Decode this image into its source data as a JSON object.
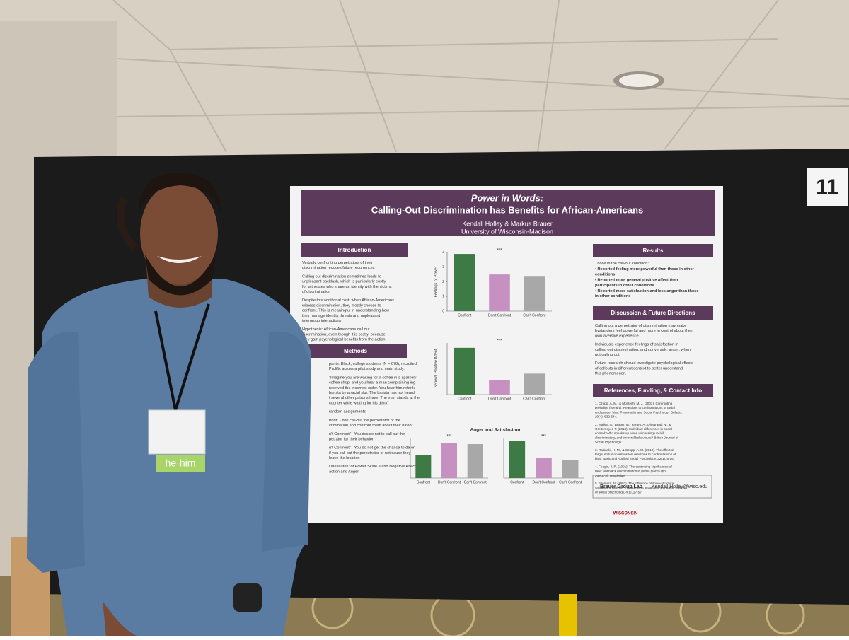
{
  "poster": {
    "number": "11",
    "title": "Power in Words:",
    "subtitle": "Calling-Out Discrimination has Benefits for African-Americans",
    "authors": "Kendall Holley & Markus Brauer",
    "affiliation": "University of Wisconsin-Madison",
    "sections": [
      {
        "heading": "Introduction",
        "paragraphs": [
          "Verbally confronting perpetrators of their discrimination reduces future recurrences",
          "Calling out discrimination sometimes leads to unpleasant backlash, which is particularly costly for witnesses who share an identity with the victims of discrimination",
          "Despite this additional cost, when African-Americans witness discrimination, they mostly choose to confront. This is meaningful in understanding how they manage identity threats and unpleasant intergroup interactions",
          "Hypothesis: African-Americans call out discrimination, even though it is costly, because they gain psychological benefits from the action."
        ]
      },
      {
        "heading": "Methods",
        "paragraphs": [
          "pants: Black, college students (N = 678), recruited Prolific across a pilot study and main study.",
          "\"Imagine you are waiting for a coffee in a sparsely coffee shop, and you hear a man complaining ing received the incorrect order. You hear him refer k barista by a racial slur. The barista has not heard t several other patrons have. The man stands at the counter while waiting for his drink\"",
          "random assignment):",
          "front\" - You call-out the perpetrator of the crimination and confront them about their havior",
          "n't Confront\" - You decide not to call out the petrator for their behavior",
          "n't Confront\" - You do not get the chance to de on if you call out the perpetrator or not cause they leave the location",
          "l Measures: of Power Scale e and Negative Affect action and Anger"
        ]
      },
      {
        "heading": "Results",
        "paragraphs": [
          "Those in the call-out condition:",
          "• Reported feeling more powerful than those in other conditions",
          "• Reported more general positive affect than participants in other conditions",
          "• Reported more satisfaction and less anger than those in other conditions"
        ]
      },
      {
        "heading": "Discussion & Future Directions",
        "paragraphs": [
          "Calling out a perpetrator of discrimination may make bystanders feel powerful and more in control about their own aversive experience.",
          "Individuals experience feelings of satisfaction in calling out discrimination, and conversely, anger, when not calling out.",
          "Future research should investigate psychological effects of callouts in different context to better understand this phenomenon."
        ]
      },
      {
        "heading": "References, Funding, & Contact Info",
        "paragraphs": [
          "1. Czopp, A. M., & Monteith, M. J. (2003). Confronting prejudice (literally): Reactions to confrontations of racial and gender bias. Personality and Social Psychology Bulletin, 29(4), 532-544.",
          "2. Mallett, A., Brauer, M., Faroro, A., Dhaurand, N., & Greitemeyer, T. (2018). Individual differences in social control: Who speaks up when witnessing uncivil, discriminatory, and immoral behaviours? British Journal of Social Psychology.",
          "3. Rasinski, H. M., & Czopp, A. M. (2010). The effect of target status on witnesses' reactions to confrontations of bias. Basic and Applied Social Psychology, 32(1), 8-16.",
          "4. Feagin, J. R. (1991). The continuing significance of race: Antiblack discrimination in public places (pp. 269-275). Routledge.",
          "5. Ellemers, N. (1993). The influence of socio-structural variables on identity management strategies. European review of social psychology, 4(1), 27-57."
        ]
      }
    ],
    "charts": [
      {
        "type": "bar",
        "y_label": "Feelings of Power",
        "annotation": "***",
        "categories": [
          "Confront",
          "Don't Confront",
          "Can't Confront"
        ],
        "values": [
          3.9,
          2.5,
          2.4
        ],
        "colors": [
          "#3d7a45",
          "#c690c0",
          "#a8a8a8"
        ],
        "ylim": [
          0,
          4
        ],
        "yticks": [
          0,
          1,
          2,
          3,
          4
        ]
      },
      {
        "type": "bar",
        "y_label": "General Positive Affect",
        "annotation": "***",
        "categories": [
          "Confront",
          "Don't Confront",
          "Can't Confront"
        ],
        "values": [
          1.45,
          0.45,
          0.65
        ],
        "colors": [
          "#3d7a45",
          "#c690c0",
          "#a8a8a8"
        ],
        "ylim": [
          0,
          1.6
        ]
      },
      {
        "type": "bar",
        "title": "Anger and Satisfaction",
        "annotation": "***",
        "categories": [
          "Confront",
          "Don't Confront",
          "Can't Confront"
        ],
        "values": [
          0.8,
          1.25,
          1.2
        ],
        "colors": [
          "#3d7a45",
          "#c690c0",
          "#a8a8a8"
        ],
        "ylim": [
          0,
          1.4
        ]
      },
      {
        "type": "bar",
        "annotation": "***",
        "categories": [
          "Confront",
          "Don't Confront",
          "Can't Confront"
        ],
        "values": [
          1.3,
          0.7,
          0.65
        ],
        "colors": [
          "#3d7a45",
          "#c690c0",
          "#a8a8a8"
        ],
        "ylim": [
          0,
          1.4
        ]
      }
    ],
    "lab": "Brauer Group Lab",
    "email": "Kendall.Holley@wisc.edu",
    "logo": "WISCONSIN"
  },
  "badge": {
    "pronouns": "he·him"
  }
}
